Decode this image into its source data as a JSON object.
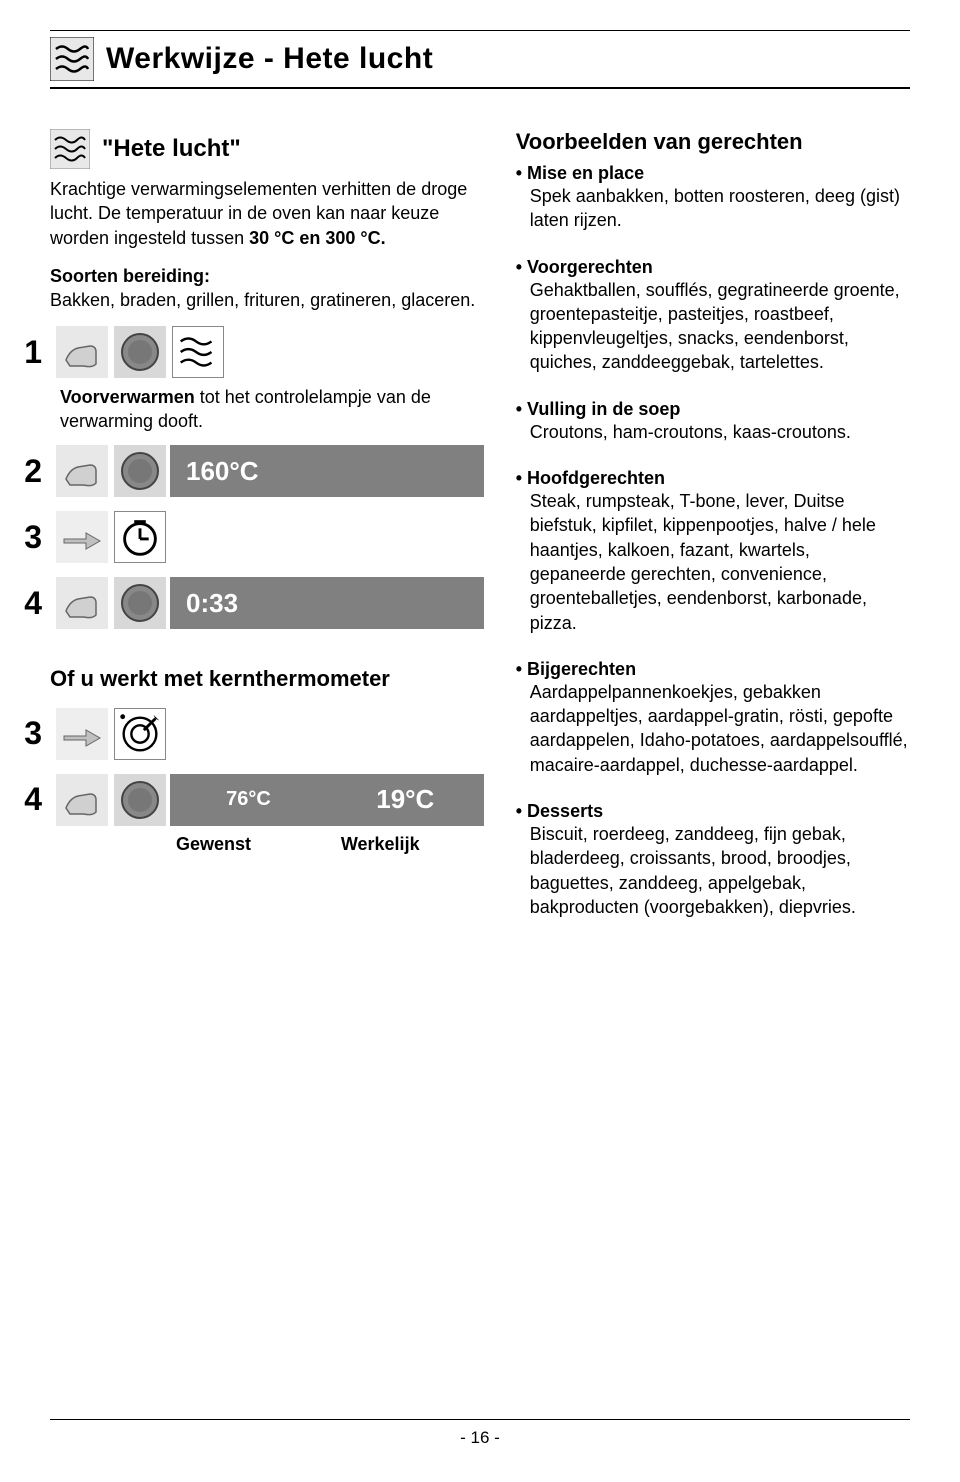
{
  "page_title": "Werkwijze - Hete lucht",
  "sub_title": "\"Hete lucht\"",
  "intro_1a": "Krachtige verwarmingselementen verhitten de droge lucht. De temperatuur in de oven kan naar keuze worden ingesteld tussen ",
  "intro_1b": "30 °C en 300 °C.",
  "intro_2a": "Soorten bereiding:",
  "intro_2b": "Bakken, braden, grillen, frituren, gratineren, glaceren.",
  "step1_num": "1",
  "step1_caption_a": "Voorverwarmen",
  "step1_caption_b": " tot het controlelampje van de verwarming dooft.",
  "step2_num": "2",
  "display_temp": "160°C",
  "step3_num": "3",
  "step4_num": "4",
  "display_time": "0:33",
  "therm_heading": "Of u werkt met kernthermometer",
  "therm_step3_num": "3",
  "therm_step4_num": "4",
  "display_gewenst": "76°C",
  "display_werkelijk": "19°C",
  "label_gewenst": "Gewenst",
  "label_werkelijk": "Werkelijk",
  "right_heading": "Voorbeelden van gerechten",
  "items": [
    {
      "title": "Mise en place",
      "text": "Spek aanbakken, botten roosteren, deeg (gist) laten rijzen."
    },
    {
      "title": "Voorgerechten",
      "text": "Gehaktballen, soufflés, gegratineerde groente, groentepasteitje, pasteitjes, roastbeef, kippenvleugeltjes, snacks, eendenborst, quiches, zanddeeggebak, tartelettes."
    },
    {
      "title": "Vulling in de soep",
      "text": "Croutons, ham-croutons, kaas-croutons."
    },
    {
      "title": "Hoofdgerechten",
      "text": "Steak, rumpsteak, T-bone, lever, Duitse biefstuk, kipfilet, kippenpootjes, halve / hele haantjes, kalkoen, fazant, kwartels, gepaneerde gerechten, convenience, groenteballetjes, eendenborst, karbonade, pizza."
    },
    {
      "title": "Bijgerechten",
      "text": "Aardappelpannenkoekjes, gebakken aardappeltjes, aardappel-gratin, rösti, gepofte aardappelen, Idaho-potatoes, aardappelsoufflé, macaire-aardappel, duchesse-aardappel."
    },
    {
      "title": "Desserts",
      "text": "Biscuit, roerdeeg, zanddeeg, fijn gebak, bladerdeeg, croissants, brood, broodjes, baguettes, zanddeeg, appelgebak, bakproducten (voorgebakken), diepvries."
    }
  ],
  "page_number": "- 16 -",
  "colors": {
    "bar_bg": "#808080",
    "bar_fg": "#ffffff"
  }
}
